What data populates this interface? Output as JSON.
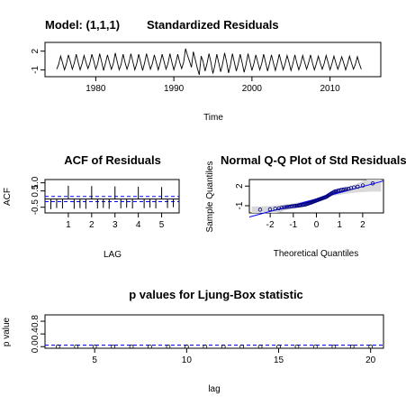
{
  "chart_data": [
    {
      "type": "line",
      "panel": "residuals",
      "titles": [
        "Model: (1,1,1)",
        "Standardized Residuals"
      ],
      "xlabel": "Time",
      "ylabel": "",
      "xlim": [
        1973.5,
        2016.5
      ],
      "ylim": [
        -2.1,
        3.4
      ],
      "xticks": [
        1980,
        1990,
        2000,
        2010
      ],
      "yticks": [
        -1,
        2
      ],
      "grid": false,
      "series": [
        {
          "x_start": 1975.0,
          "x_step": 0.25,
          "values": [
            -0.9,
            -0.1,
            1.2,
            0.1,
            -1.0,
            0.0,
            1.4,
            0.3,
            -0.9,
            0.1,
            1.5,
            0.2,
            -1.0,
            0.0,
            1.3,
            0.2,
            -0.8,
            0.1,
            1.5,
            0.4,
            -0.9,
            0.0,
            1.6,
            0.3,
            -1.1,
            0.1,
            1.4,
            0.2,
            -0.9,
            0.0,
            1.7,
            0.3,
            -1.0,
            -0.1,
            1.5,
            0.2,
            -0.9,
            0.1,
            1.6,
            0.3,
            -1.0,
            0.0,
            1.5,
            0.2,
            -1.1,
            0.1,
            1.6,
            0.3,
            -0.9,
            0.0,
            1.4,
            0.2,
            -1.0,
            0.1,
            1.5,
            0.3,
            -0.9,
            0.0,
            1.6,
            0.2,
            -1.0,
            0.1,
            1.5,
            0.2,
            -0.8,
            0.2,
            2.4,
            1.3,
            0.4,
            -0.6,
            1.9,
            0.6,
            -0.7,
            -1.8,
            1.2,
            0.3,
            -1.2,
            0.0,
            1.6,
            0.2,
            -1.6,
            -0.3,
            1.5,
            0.1,
            -1.3,
            0.0,
            1.7,
            0.3,
            -1.5,
            -0.2,
            1.6,
            0.2,
            -1.2,
            0.0,
            1.5,
            0.1,
            -1.4,
            -0.1,
            1.6,
            0.3,
            -1.1,
            0.0,
            1.4,
            0.2,
            -1.0,
            0.0,
            1.5,
            0.2,
            -1.2,
            0.0,
            1.4,
            0.1,
            -1.1,
            0.1,
            1.5,
            0.2,
            -1.0,
            0.0,
            1.3,
            0.2,
            -1.1,
            0.0,
            1.4,
            0.1,
            -1.0,
            0.0,
            1.3,
            0.2,
            -0.9,
            0.1,
            1.4,
            0.1,
            -1.0,
            0.0,
            1.2,
            0.1,
            -0.9,
            0.0,
            1.3,
            0.2,
            -1.0,
            0.0,
            1.2,
            0.1,
            -0.9,
            0.0,
            1.1,
            0.1,
            -1.0,
            0.0,
            1.2,
            0.1,
            -0.9,
            -0.1,
            1.1,
            0.0,
            -0.9
          ]
        }
      ]
    },
    {
      "type": "bar",
      "panel": "acf",
      "title": "ACF of Residuals",
      "xlabel": "LAG",
      "ylabel": "ACF",
      "xlim": [
        0.0,
        5.75
      ],
      "ylim": [
        -0.85,
        1.2
      ],
      "xticks": [
        1,
        2,
        3,
        4,
        5
      ],
      "yticks": [
        -0.5,
        0.5,
        1.0
      ],
      "ytick_labels": [
        "-0.5",
        "0.5",
        "1.0"
      ],
      "confidence_bounds": [
        0.16,
        -0.16
      ],
      "lags": [
        0.25,
        0.5,
        0.75,
        1.0,
        1.25,
        1.5,
        1.75,
        2.0,
        2.25,
        2.5,
        2.75,
        3.0,
        3.25,
        3.5,
        3.75,
        4.0,
        4.25,
        4.5,
        4.75,
        5.0,
        5.25,
        5.5
      ],
      "values": [
        -0.62,
        -0.55,
        -0.58,
        0.82,
        -0.6,
        -0.55,
        -0.6,
        0.8,
        -0.58,
        -0.54,
        -0.6,
        0.78,
        -0.57,
        -0.53,
        -0.58,
        0.76,
        -0.56,
        -0.52,
        -0.57,
        0.74,
        -0.55,
        -0.5
      ],
      "colors": {
        "bound": "#0000ff"
      }
    },
    {
      "type": "scatter",
      "panel": "qq",
      "title": "Normal Q-Q Plot of Std Residuals",
      "xlabel": "Theoretical Quantiles",
      "ylabel": "Sample Quantiles",
      "xlim": [
        -2.9,
        2.9
      ],
      "ylim": [
        -2.1,
        3.0
      ],
      "xticks": [
        -2,
        -1,
        0,
        1,
        2
      ],
      "yticks": [
        -1,
        2
      ],
      "reference_line": {
        "intercept": 0.03,
        "slope": 0.95
      },
      "sample_quantiles": [
        -1.6,
        -1.55,
        -1.45,
        -1.4,
        -1.3,
        -1.25,
        -1.2,
        -1.18,
        -1.15,
        -1.1,
        -1.08,
        -1.05,
        -1.02,
        -1.0,
        -0.98,
        -0.95,
        -0.92,
        -0.9,
        -0.88,
        -0.85,
        -0.82,
        -0.8,
        -0.75,
        -0.7,
        -0.65,
        -0.6,
        -0.55,
        -0.5,
        -0.45,
        -0.4,
        -0.35,
        -0.3,
        -0.25,
        -0.2,
        -0.15,
        -0.1,
        -0.05,
        0.0,
        0.05,
        0.1,
        0.15,
        0.2,
        0.25,
        0.3,
        0.35,
        0.45,
        0.55,
        0.65,
        0.75,
        0.85,
        0.95,
        1.05,
        1.15,
        1.2,
        1.25,
        1.3,
        1.35,
        1.4,
        1.45,
        1.5,
        1.55,
        1.6,
        1.7,
        1.8,
        1.9,
        2.1,
        2.4
      ],
      "colors": {
        "points": "#000080",
        "reference": "#0000ff",
        "band": "#d9d9d9"
      }
    },
    {
      "type": "scatter",
      "panel": "ljung_box",
      "title": "p values for Ljung-Box statistic",
      "xlabel": "lag",
      "ylabel": "p value",
      "xlim": [
        2.3,
        20.7
      ],
      "ylim": [
        -0.05,
        1.0
      ],
      "xticks": [
        5,
        10,
        15,
        20
      ],
      "yticks": [
        0.0,
        0.4,
        0.8
      ],
      "ytick_labels": [
        "0.0",
        "0.4",
        "0.8"
      ],
      "significance_level": 0.05,
      "lags": [
        3,
        4,
        5,
        6,
        7,
        8,
        9,
        10,
        11,
        12,
        13,
        14,
        15,
        16,
        17,
        18,
        19,
        20
      ],
      "values": [
        0.0,
        0.0,
        0.0,
        0.0,
        0.0,
        0.0,
        0.0,
        0.0,
        0.0,
        0.0,
        0.0,
        0.0,
        0.0,
        0.0,
        0.0,
        0.0,
        0.0,
        0.0
      ],
      "colors": {
        "threshold": "#0000ff"
      }
    }
  ]
}
